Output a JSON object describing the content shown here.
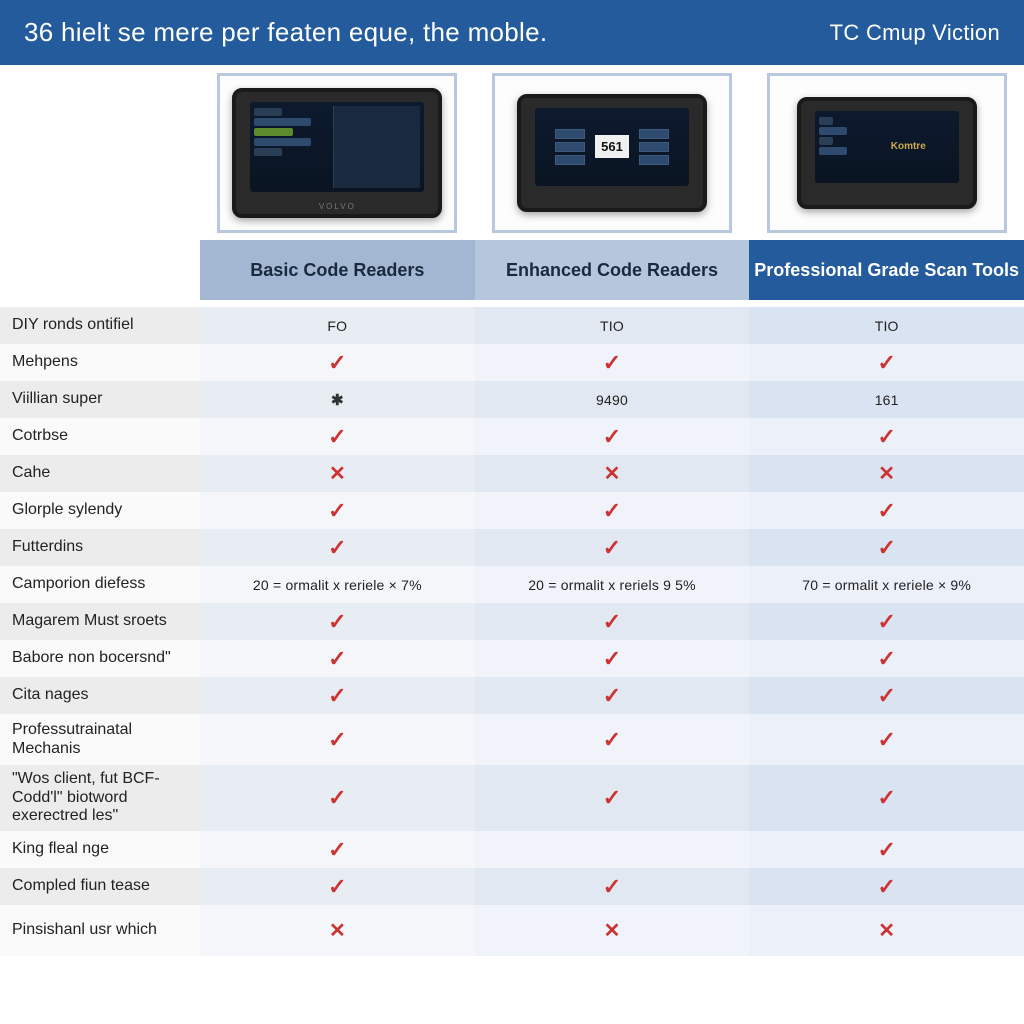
{
  "header": {
    "title": "36 hielt se mere per featen eque, the moble.",
    "brand": "TC Cmup Viction",
    "bg": "#235b9c",
    "fg": "#ffffff"
  },
  "columns": [
    {
      "key": "c1",
      "label": "Basic Code Readers",
      "header_bg": "#a3b6d2",
      "header_fg": "#1a2a3e",
      "body_bg_even": "#e8ecf3",
      "body_bg_odd": "#f4f6fa",
      "device_brand": "VOLVO"
    },
    {
      "key": "c2",
      "label": "Enhanced Code Readers",
      "header_bg": "#b6c6dd",
      "header_fg": "#1a2a3e",
      "body_bg_even": "#e2e8f2",
      "body_bg_odd": "#f0f3f9",
      "device_center_number": "561"
    },
    {
      "key": "c3",
      "label": "Professional Grade Scan Tools",
      "header_bg": "#235b9c",
      "header_fg": "#ffffff",
      "body_bg_even": "#dae3f1",
      "body_bg_odd": "#ecf0f8",
      "device_side_label": "Komtre"
    }
  ],
  "rows": [
    {
      "label": "DIY ronds ontifiel",
      "cells": [
        "FO",
        "TIO",
        "TIO"
      ],
      "types": [
        "text",
        "text",
        "text"
      ]
    },
    {
      "label": "Mehpens",
      "cells": [
        "check",
        "check",
        "check"
      ],
      "types": [
        "icon",
        "icon",
        "icon"
      ]
    },
    {
      "label": "Viillian super",
      "cells": [
        "cross-sm",
        "9490",
        "161"
      ],
      "types": [
        "icon",
        "text",
        "text"
      ]
    },
    {
      "label": "Cotrbse",
      "cells": [
        "check",
        "check",
        "check"
      ],
      "types": [
        "icon",
        "icon",
        "icon"
      ]
    },
    {
      "label": "Cahe",
      "cells": [
        "cross",
        "cross",
        "cross"
      ],
      "types": [
        "icon",
        "icon",
        "icon"
      ]
    },
    {
      "label": "Glorple sylendy",
      "cells": [
        "check",
        "check",
        "check"
      ],
      "types": [
        "icon",
        "icon",
        "icon"
      ]
    },
    {
      "label": "Futterdins",
      "cells": [
        "check",
        "check",
        "check"
      ],
      "types": [
        "icon",
        "icon",
        "icon"
      ]
    },
    {
      "label": "Camporion diefess",
      "cells": [
        "20 = ormalit x reriele × 7%",
        "20 = ormalit x reriels 9 5%",
        "70 = ormalit x reriele × 9%"
      ],
      "types": [
        "text",
        "text",
        "text"
      ]
    },
    {
      "label": "Magarem Must sroets",
      "cells": [
        "check",
        "check",
        "check"
      ],
      "types": [
        "icon",
        "icon",
        "icon"
      ]
    },
    {
      "label": "Babore non bocersnd\"",
      "cells": [
        "check",
        "check",
        "check"
      ],
      "types": [
        "icon",
        "icon",
        "icon"
      ]
    },
    {
      "label": "Cita nages",
      "cells": [
        "check",
        "check",
        "check"
      ],
      "types": [
        "icon",
        "icon",
        "icon"
      ]
    },
    {
      "label": "Professutrainatal Mechanis",
      "cells": [
        "check",
        "check",
        "check"
      ],
      "types": [
        "icon",
        "icon",
        "icon"
      ],
      "tall": true
    },
    {
      "label": "\"Wos client, fut BCF-Codd'l\" biotword exerectred les\"",
      "cells": [
        "check",
        "check",
        "check"
      ],
      "types": [
        "icon",
        "icon",
        "icon"
      ],
      "xtall": true
    },
    {
      "label": "King fleal nge",
      "cells": [
        "check",
        "",
        "check"
      ],
      "types": [
        "icon",
        "blank",
        "icon"
      ]
    },
    {
      "label": "Compled fiun tease",
      "cells": [
        "check",
        "check",
        "check"
      ],
      "types": [
        "icon",
        "icon",
        "icon"
      ]
    },
    {
      "label": "Pinsishanl usr which",
      "cells": [
        "cross",
        "cross",
        "cross"
      ],
      "types": [
        "icon",
        "icon",
        "icon"
      ],
      "tall": true
    }
  ],
  "icons": {
    "check_color": "#c33333",
    "cross_color": "#c33333"
  }
}
